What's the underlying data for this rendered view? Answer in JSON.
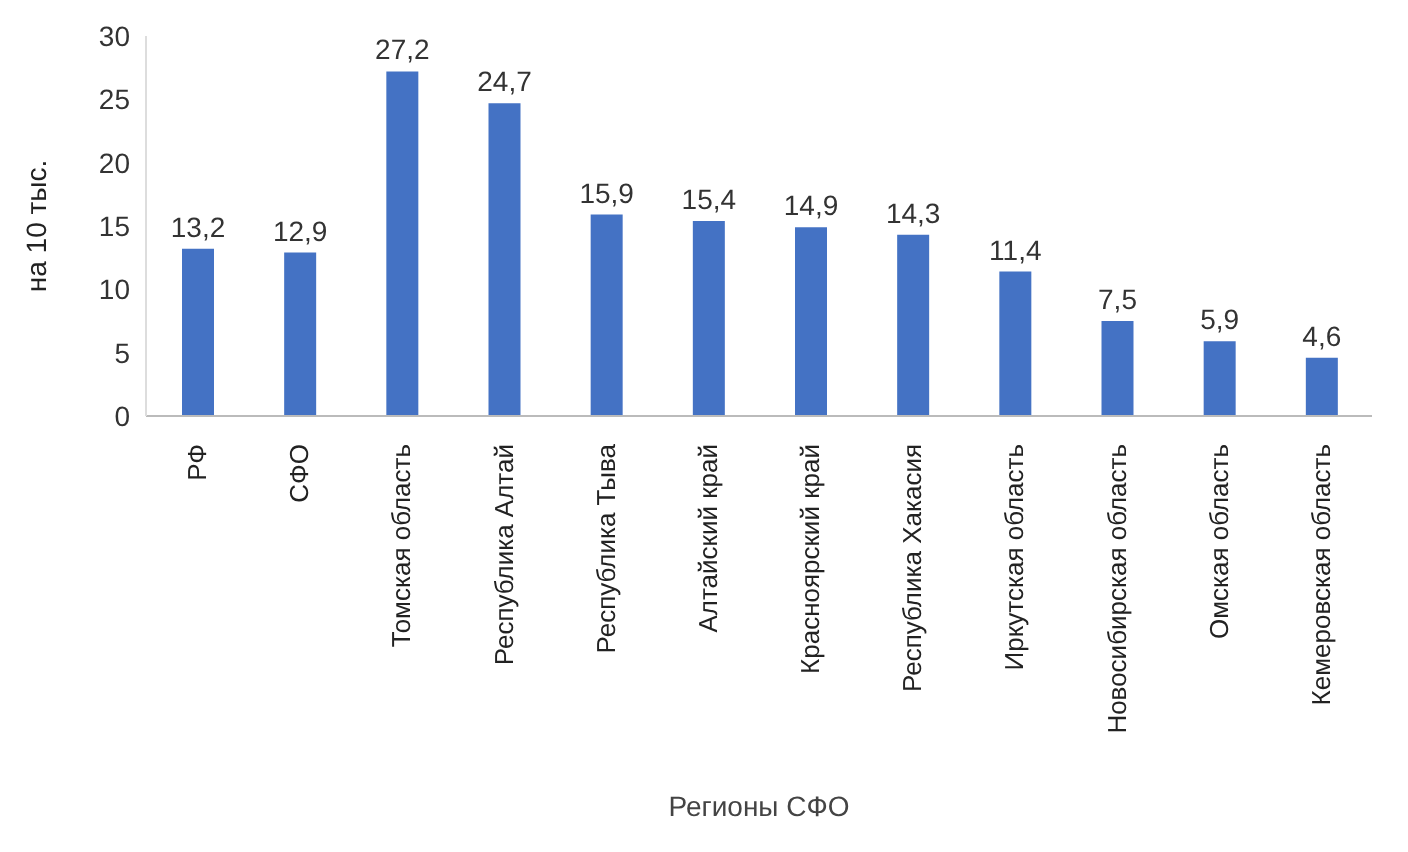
{
  "chart_data": {
    "type": "bar",
    "xlabel": "Регионы СФО",
    "ylabel": "на 10 тыс.",
    "categories": [
      "РФ",
      "СФО",
      "Томская область",
      "Республика Алтай",
      "Республика Тыва",
      "Алтайский край",
      "Красноярский край",
      "Республика Хакасия",
      "Иркутская область",
      "Новосибирская область",
      "Омская область",
      "Кемеровская область"
    ],
    "values": [
      13.2,
      12.9,
      27.2,
      24.7,
      15.9,
      15.4,
      14.9,
      14.3,
      11.4,
      7.5,
      5.9,
      4.6
    ],
    "value_labels": [
      "13,2",
      "12,9",
      "27,2",
      "24,7",
      "15,9",
      "15,4",
      "14,9",
      "14,3",
      "11,4",
      "7,5",
      "5,9",
      "4,6"
    ],
    "color": "#4472c4",
    "ylim": [
      0,
      30
    ],
    "yticks": [
      0,
      5,
      10,
      15,
      20,
      25,
      30
    ],
    "grid": false
  }
}
